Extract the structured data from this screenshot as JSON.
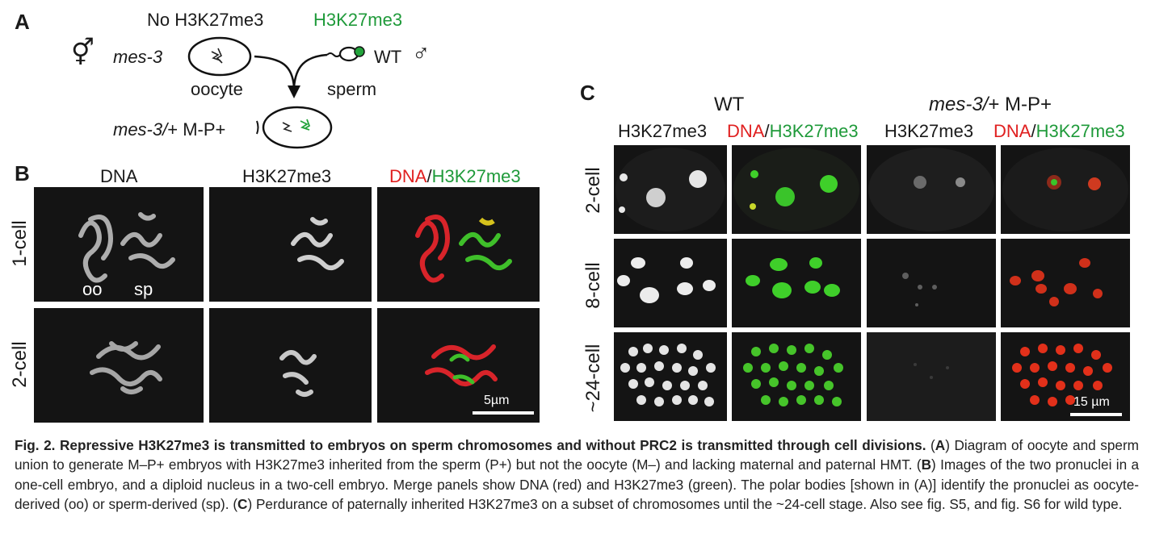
{
  "panel_a": {
    "label": "A",
    "no_h3k27me3": "No H3K27me3",
    "h3k27me3": "H3K27me3",
    "mes3": "mes-3",
    "wt": "WT",
    "oocyte": "oocyte",
    "sperm": "sperm",
    "offspring_italic": "mes-3/",
    "offspring_rest": "+ M-P+",
    "hermaphrodite_symbol": "⚥",
    "male_symbol": "♂",
    "colors": {
      "green": "#1f9a3a"
    }
  },
  "panel_b": {
    "label": "B",
    "col_dna": "DNA",
    "col_h3": "H3K27me3",
    "col_merge_dna": "DNA",
    "col_merge_sep": "/",
    "col_merge_h3": "H3K27me3",
    "row_1cell": "1-cell",
    "row_2cell": "2-cell",
    "oo": "oo",
    "sp": "sp",
    "scale": "5µm"
  },
  "panel_c": {
    "label": "C",
    "wt": "WT",
    "mutant_italic": "mes-3/",
    "mutant_rest": "+ M-P+",
    "col_h3": "H3K27me3",
    "col_merge_dna": "DNA",
    "col_merge_sep": "/",
    "col_merge_h3": "H3K27me3",
    "col_h3_2": "H3K27me3",
    "col_merge_dna_2": "DNA",
    "col_merge_sep_2": "/",
    "col_merge_h3_2": "H3K27me3",
    "row_2cell": "2-cell",
    "row_8cell": "8-cell",
    "row_24cell": "~24-cell",
    "scale": "15 µm"
  },
  "caption": {
    "fig": "Fig. 2. Repressive H3K27me3 is transmitted to embryos on sperm chromosomes and without PRC2 is transmitted through cell divisions.",
    "p1": " (",
    "A": "A",
    "p2": ") Diagram of oocyte and sperm union to generate M–P+ embryos with H3K27me3 inherited from the sperm (P+) but not the oocyte (M–) and lacking maternal and paternal HMT. (",
    "B": "B",
    "p3": ") Images of the two pronuclei in a one-cell embryo, and a diploid nucleus in a two-cell embryo. Merge panels show DNA (red) and H3K27me3 (green). The polar bodies [shown in (A)] identify the pronuclei as oocyte-derived (oo) or sperm-derived (sp). (",
    "C": "C",
    "p4": ") Perdurance of paternally inherited H3K27me3 on a subset of chromosomes until the ~24-cell stage. Also see fig. S5, and fig. S6 for wild type."
  }
}
